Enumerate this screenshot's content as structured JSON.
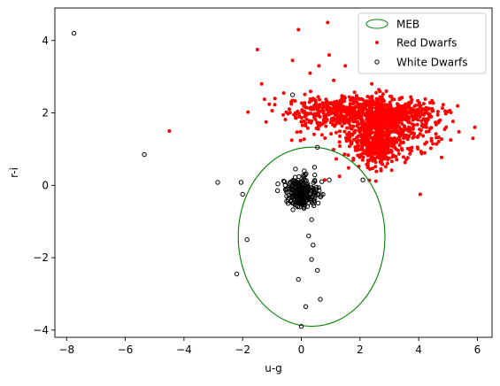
{
  "chart_data": {
    "type": "scatter",
    "title": "",
    "xlabel": "u-g",
    "ylabel": "r-i",
    "xlim": [
      -8.4,
      6.5
    ],
    "ylim": [
      -4.2,
      4.9
    ],
    "xticks": [
      -8,
      -6,
      -4,
      -2,
      0,
      2,
      4,
      6
    ],
    "xtick_labels": [
      "−8",
      "−6",
      "−4",
      "−2",
      "0",
      "2",
      "4",
      "6"
    ],
    "yticks": [
      -4,
      -2,
      0,
      2,
      4
    ],
    "ytick_labels": [
      "−4",
      "−2",
      "0",
      "2",
      "4"
    ],
    "grid": false,
    "legend": {
      "placement": "top-right",
      "entries": [
        {
          "label": "MEB",
          "kind": "ellipse-outline",
          "color": "#008000"
        },
        {
          "label": "Red Dwarfs",
          "kind": "filled-dot",
          "color": "#ff0000"
        },
        {
          "label": "White Dwarfs",
          "kind": "open-circle",
          "color": "#000000"
        }
      ]
    },
    "ellipse": {
      "name": "MEB",
      "center": [
        0.35,
        -1.42
      ],
      "width": 5.0,
      "height": 4.95,
      "color": "#008000"
    },
    "red_dwarfs": {
      "name": "Red Dwarfs",
      "color": "#ff0000",
      "outliers": [
        [
          0.9,
          4.5
        ],
        [
          -0.1,
          4.3
        ],
        [
          -1.5,
          3.75
        ],
        [
          -4.5,
          1.5
        ],
        [
          5.85,
          1.3
        ],
        [
          4.05,
          -0.25
        ],
        [
          -1.2,
          1.75
        ],
        [
          0.8,
          0.15
        ],
        [
          1.3,
          0.25
        ],
        [
          2.05,
          0.85
        ],
        [
          -0.6,
          2.55
        ],
        [
          -0.3,
          3.45
        ],
        [
          0.6,
          3.3
        ],
        [
          1.5,
          3.3
        ],
        [
          2.9,
          2.6
        ],
        [
          -0.9,
          2.4
        ],
        [
          -1.35,
          2.8
        ],
        [
          4.9,
          2.05
        ],
        [
          4.4,
          1.9
        ],
        [
          0.3,
          3.1
        ],
        [
          1.1,
          2.9
        ],
        [
          3.3,
          2.2
        ],
        [
          -0.2,
          2.0
        ],
        [
          2.4,
          2.8
        ],
        [
          0.95,
          3.6
        ]
      ],
      "clusters": [
        {
          "center": [
            1.6,
            2.05
          ],
          "spread": [
            1.05,
            0.2
          ],
          "count": 380
        },
        {
          "center": [
            3.0,
            2.0
          ],
          "spread": [
            0.8,
            0.2
          ],
          "count": 280
        },
        {
          "center": [
            2.5,
            1.4
          ],
          "spread": [
            0.55,
            0.38
          ],
          "count": 420
        },
        {
          "center": [
            3.6,
            1.5
          ],
          "spread": [
            0.65,
            0.3
          ],
          "count": 180
        },
        {
          "center": [
            2.6,
            0.95
          ],
          "spread": [
            0.3,
            0.25
          ],
          "count": 140
        },
        {
          "center": [
            0.5,
            1.8
          ],
          "spread": [
            0.5,
            0.3
          ],
          "count": 60
        }
      ]
    },
    "white_dwarfs": {
      "name": "White Dwarfs",
      "color": "#000000",
      "outliers": [
        [
          -7.75,
          4.2
        ],
        [
          -5.35,
          0.85
        ],
        [
          -2.85,
          0.08
        ],
        [
          -2.05,
          0.08
        ],
        [
          -2.0,
          -0.25
        ],
        [
          -1.85,
          -1.5
        ],
        [
          -2.2,
          -2.45
        ],
        [
          -0.3,
          2.5
        ],
        [
          0.55,
          1.05
        ],
        [
          2.1,
          0.15
        ],
        [
          0.35,
          -0.95
        ],
        [
          0.25,
          -1.4
        ],
        [
          0.4,
          -1.65
        ],
        [
          0.35,
          -2.05
        ],
        [
          0.55,
          -2.35
        ],
        [
          -0.1,
          -2.6
        ],
        [
          0.65,
          -3.15
        ],
        [
          0.15,
          -3.35
        ],
        [
          0.0,
          -3.9
        ],
        [
          0.95,
          0.15
        ],
        [
          -0.6,
          0.12
        ],
        [
          -0.5,
          -0.3
        ],
        [
          -0.45,
          -0.5
        ],
        [
          -0.2,
          0.45
        ],
        [
          0.45,
          0.5
        ],
        [
          0.1,
          0.4
        ],
        [
          0.7,
          0.1
        ],
        [
          -0.55,
          0.0
        ]
      ],
      "clusters": [
        {
          "center": [
            0.05,
            -0.2
          ],
          "spread": [
            0.28,
            0.2
          ],
          "count": 230
        }
      ]
    }
  }
}
